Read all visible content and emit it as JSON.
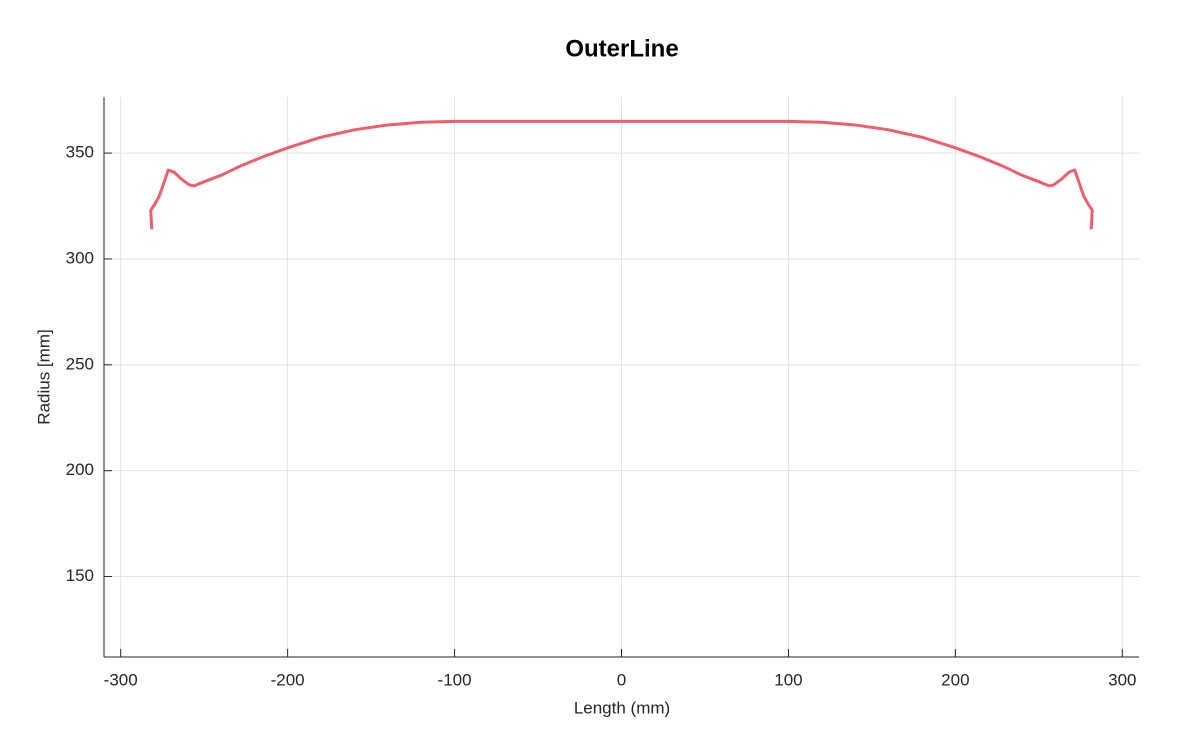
{
  "chart_data": {
    "type": "line",
    "title": "OuterLine",
    "x_label": "Length (mm)",
    "y_label": "Radius [mm]",
    "x": [
      -281.4,
      -282,
      -279.5,
      -277,
      -275,
      -271.5,
      -268,
      -264,
      -259,
      -256,
      -250,
      -240,
      -228,
      -214,
      -200,
      -180,
      -160,
      -140,
      -120,
      -100,
      0,
      100,
      120,
      140,
      160,
      180,
      200,
      214,
      228,
      240,
      250,
      256,
      259,
      264,
      268,
      271.5,
      275,
      277,
      279.5,
      282,
      281.4
    ],
    "series": [
      {
        "name": "OuterLine",
        "color": "#ee5f6d",
        "values": [
          314,
          323,
          326,
          329.5,
          334,
          342,
          341,
          338,
          335,
          334.5,
          336.5,
          339.5,
          344,
          348.5,
          352.5,
          357.5,
          361,
          363.3,
          364.6,
          365,
          365,
          365,
          364.6,
          363.3,
          361,
          357.5,
          352.5,
          348.5,
          344,
          339.5,
          336.5,
          334.5,
          335,
          338,
          341,
          342,
          334,
          329.5,
          326,
          323,
          314
        ]
      }
    ],
    "xlim": [
      -310,
      310
    ],
    "ylim": [
      112,
      376.5
    ],
    "xticks": [
      -300,
      -200,
      -100,
      0,
      100,
      200,
      300
    ],
    "yticks": [
      150,
      200,
      250,
      300,
      350
    ],
    "grid": true
  }
}
